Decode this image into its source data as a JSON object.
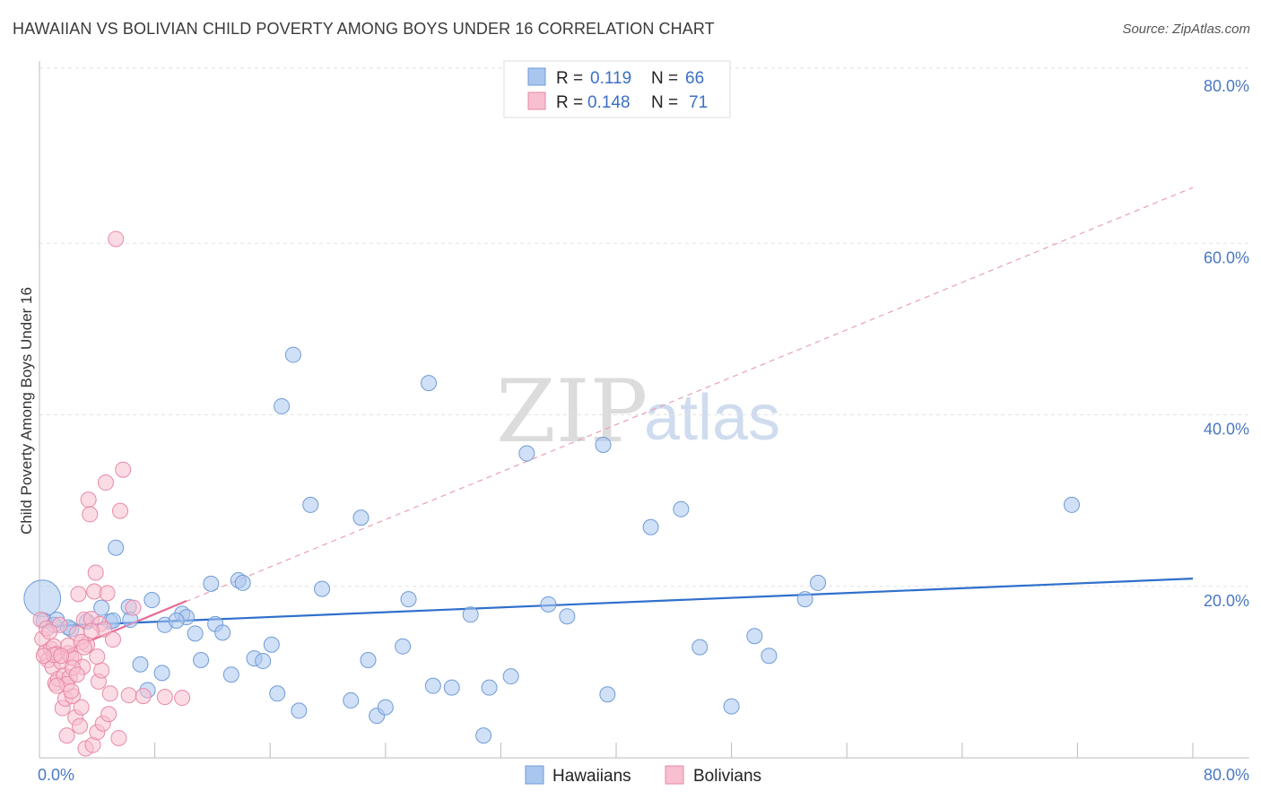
{
  "header": {
    "title": "HAWAIIAN VS BOLIVIAN CHILD POVERTY AMONG BOYS UNDER 16 CORRELATION CHART",
    "source": "Source: ZipAtlas.com"
  },
  "watermark": {
    "zip": "ZIP",
    "atlas": "atlas"
  },
  "legend": {
    "rows": [
      {
        "r_label": "R =",
        "r_value": "0.119",
        "n_label": "N =",
        "n_value": "66",
        "color": "#a9c6ee",
        "stroke": "#6f9bd8"
      },
      {
        "r_label": "R =",
        "r_value": "0.148",
        "n_label": "N =",
        "n_value": "71",
        "color": "#f7bfd0",
        "stroke": "#e889a7"
      }
    ]
  },
  "bottom_legend": [
    {
      "label": "Hawaiians",
      "color": "#a9c6ee",
      "stroke": "#6f9bd8"
    },
    {
      "label": "Bolivians",
      "color": "#f7bfd0",
      "stroke": "#e889a7"
    }
  ],
  "chart_data": {
    "type": "scatter",
    "title": "HAWAIIAN VS BOLIVIAN CHILD POVERTY AMONG BOYS UNDER 16 CORRELATION CHART",
    "xlabel": "",
    "ylabel": "Child Poverty Among Boys Under 16",
    "xlim": [
      0,
      80
    ],
    "ylim": [
      0,
      80
    ],
    "x_tick_labels": [
      "0.0%",
      "80.0%"
    ],
    "y_ticks": [
      20,
      40,
      60,
      80
    ],
    "y_tick_labels": [
      "20.0%",
      "40.0%",
      "60.0%",
      "80.0%"
    ],
    "grid": true,
    "series": [
      {
        "name": "Hawaiians",
        "color": "#a9c6ee",
        "stroke": "#6f9bd8",
        "trend": {
          "x": [
            0,
            80
          ],
          "y": [
            15.3,
            20.9
          ],
          "color": "#2f6fcc",
          "style": "solid"
        },
        "points": [
          [
            0.2,
            18.6,
            2.4
          ],
          [
            0.3,
            16.0,
            1
          ],
          [
            1.0,
            15.5,
            1
          ],
          [
            1.2,
            16.1,
            1
          ],
          [
            2.2,
            15.0,
            1
          ],
          [
            3.3,
            15.9,
            1
          ],
          [
            4.3,
            17.5,
            1
          ],
          [
            4.9,
            15.9,
            1
          ],
          [
            5.3,
            24.5,
            1
          ],
          [
            6.2,
            17.6,
            1
          ],
          [
            6.3,
            16.1,
            1
          ],
          [
            7.0,
            10.9,
            1
          ],
          [
            7.5,
            7.9,
            1
          ],
          [
            7.8,
            18.4,
            1
          ],
          [
            8.5,
            9.9,
            1
          ],
          [
            8.7,
            15.5,
            1
          ],
          [
            9.9,
            16.8,
            1
          ],
          [
            10.2,
            16.4,
            1
          ],
          [
            10.8,
            14.5,
            1
          ],
          [
            11.2,
            11.4,
            1
          ],
          [
            11.9,
            20.3,
            1
          ],
          [
            12.2,
            15.6,
            1
          ],
          [
            12.7,
            14.6,
            1
          ],
          [
            13.3,
            9.7,
            1
          ],
          [
            13.8,
            20.7,
            1
          ],
          [
            14.1,
            20.4,
            1
          ],
          [
            14.9,
            11.6,
            1
          ],
          [
            15.5,
            11.3,
            1
          ],
          [
            16.1,
            13.2,
            1
          ],
          [
            16.5,
            7.5,
            1
          ],
          [
            16.8,
            41.0,
            1
          ],
          [
            17.6,
            47.0,
            1
          ],
          [
            18.0,
            5.5,
            1
          ],
          [
            18.8,
            29.5,
            1
          ],
          [
            19.6,
            19.7,
            1
          ],
          [
            21.6,
            6.7,
            1
          ],
          [
            22.3,
            28.0,
            1
          ],
          [
            22.8,
            11.4,
            1
          ],
          [
            23.4,
            4.9,
            1
          ],
          [
            24.0,
            5.9,
            1
          ],
          [
            25.2,
            13.0,
            1
          ],
          [
            25.6,
            18.5,
            1
          ],
          [
            27.0,
            43.7,
            1
          ],
          [
            27.3,
            8.4,
            1
          ],
          [
            28.6,
            8.2,
            1
          ],
          [
            29.9,
            16.7,
            1
          ],
          [
            30.8,
            2.6,
            1
          ],
          [
            31.2,
            8.2,
            1
          ],
          [
            32.7,
            9.5,
            1
          ],
          [
            33.8,
            35.5,
            1
          ],
          [
            35.3,
            17.9,
            1
          ],
          [
            36.6,
            16.5,
            1
          ],
          [
            39.1,
            36.5,
            1
          ],
          [
            39.4,
            7.4,
            1
          ],
          [
            42.4,
            26.9,
            1
          ],
          [
            44.5,
            29.0,
            1
          ],
          [
            45.8,
            12.9,
            1
          ],
          [
            48.0,
            6.0,
            1
          ],
          [
            49.6,
            14.2,
            1
          ],
          [
            50.6,
            11.9,
            1
          ],
          [
            53.1,
            18.5,
            1
          ],
          [
            54.0,
            20.4,
            1
          ],
          [
            71.6,
            29.5,
            1
          ],
          [
            2.0,
            15.2,
            1
          ],
          [
            5.1,
            16.0,
            1
          ],
          [
            9.5,
            16.0,
            1
          ]
        ]
      },
      {
        "name": "Bolivians",
        "color": "#f7bfd0",
        "stroke": "#e889a7",
        "trend": {
          "x": [
            0,
            10.2
          ],
          "y": [
            11.2,
            18.3
          ],
          "color": "#e86a93",
          "style": "solid"
        },
        "trend_dashed": {
          "x": [
            0,
            80
          ],
          "y": [
            11.2,
            66.5
          ],
          "color": "#e8a0b6",
          "style": "dashed"
        },
        "points": [
          [
            0.1,
            16.1,
            1
          ],
          [
            0.2,
            13.9,
            1
          ],
          [
            0.4,
            12.3,
            1
          ],
          [
            0.5,
            15.1,
            1
          ],
          [
            0.6,
            11.4,
            1
          ],
          [
            0.8,
            12.7,
            1
          ],
          [
            0.9,
            10.6,
            1
          ],
          [
            1.0,
            13.0,
            1
          ],
          [
            1.1,
            8.7,
            1
          ],
          [
            1.2,
            12.1,
            1
          ],
          [
            1.3,
            9.2,
            1
          ],
          [
            1.4,
            15.5,
            1
          ],
          [
            1.5,
            11.2,
            1
          ],
          [
            1.6,
            5.8,
            1
          ],
          [
            1.7,
            9.6,
            1
          ],
          [
            1.8,
            6.9,
            1
          ],
          [
            1.9,
            2.6,
            1
          ],
          [
            2.0,
            12.2,
            1
          ],
          [
            2.1,
            9.4,
            1
          ],
          [
            2.2,
            11.7,
            1
          ],
          [
            2.3,
            7.2,
            1
          ],
          [
            2.4,
            11.6,
            1
          ],
          [
            2.5,
            4.7,
            1
          ],
          [
            2.6,
            14.5,
            1
          ],
          [
            2.7,
            19.1,
            1
          ],
          [
            2.8,
            3.7,
            1
          ],
          [
            2.9,
            5.9,
            1
          ],
          [
            3.0,
            10.6,
            1
          ],
          [
            3.1,
            16.1,
            1
          ],
          [
            3.2,
            1.1,
            1
          ],
          [
            3.3,
            13.2,
            1
          ],
          [
            3.4,
            30.1,
            1
          ],
          [
            3.5,
            28.4,
            1
          ],
          [
            3.6,
            16.2,
            1
          ],
          [
            3.7,
            1.5,
            1
          ],
          [
            3.8,
            19.4,
            1
          ],
          [
            3.9,
            21.6,
            1
          ],
          [
            4.0,
            3.0,
            1
          ],
          [
            4.1,
            8.9,
            1
          ],
          [
            4.2,
            15.6,
            1
          ],
          [
            4.3,
            10.2,
            1
          ],
          [
            4.4,
            4.0,
            1
          ],
          [
            4.5,
            15.0,
            1
          ],
          [
            4.6,
            32.1,
            1
          ],
          [
            4.7,
            19.2,
            1
          ],
          [
            4.8,
            5.1,
            1
          ],
          [
            4.9,
            7.5,
            1
          ],
          [
            5.1,
            13.8,
            1
          ],
          [
            5.3,
            60.5,
            1
          ],
          [
            5.5,
            2.3,
            1
          ],
          [
            5.6,
            28.8,
            1
          ],
          [
            5.8,
            33.6,
            1
          ],
          [
            6.2,
            7.3,
            1
          ],
          [
            6.5,
            17.5,
            1
          ],
          [
            7.2,
            7.2,
            1
          ],
          [
            8.7,
            7.1,
            1
          ],
          [
            9.9,
            7.0,
            1
          ],
          [
            1.0,
            12.0,
            1
          ],
          [
            2.0,
            13.1,
            1
          ],
          [
            2.3,
            10.5,
            1
          ],
          [
            1.5,
            11.9,
            1
          ],
          [
            2.9,
            13.5,
            1
          ],
          [
            0.7,
            14.7,
            1
          ],
          [
            1.9,
            8.6,
            1
          ],
          [
            3.1,
            12.9,
            1
          ],
          [
            2.2,
            7.8,
            1
          ],
          [
            1.2,
            8.4,
            1
          ],
          [
            3.6,
            14.8,
            1
          ],
          [
            2.6,
            9.7,
            1
          ],
          [
            0.3,
            11.9,
            1
          ],
          [
            4.0,
            11.8,
            1
          ]
        ]
      }
    ]
  }
}
